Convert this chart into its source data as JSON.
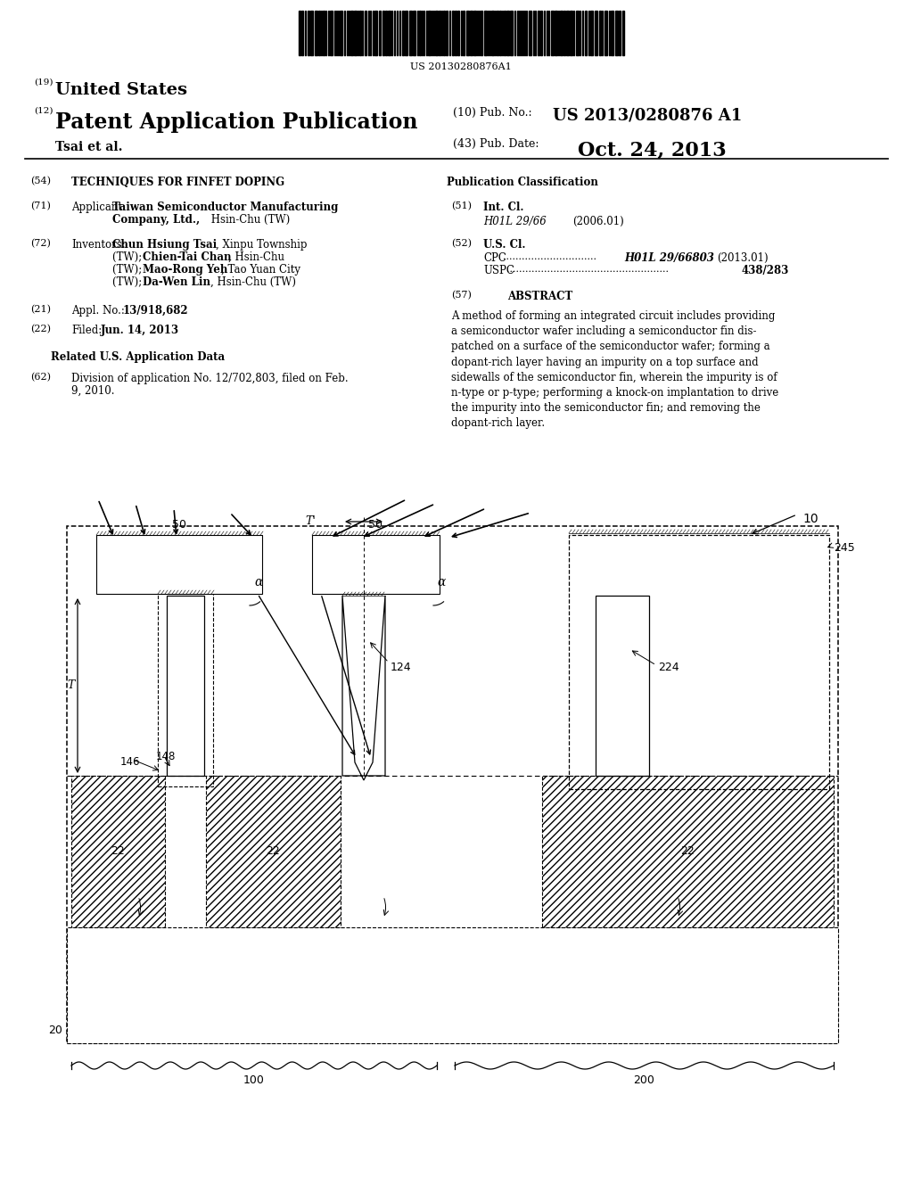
{
  "bg_color": "#ffffff",
  "barcode_text": "US 20130280876A1",
  "line19_label": "(19)",
  "line19_text": "United States",
  "line12_label": "(12)",
  "line12_text": "Patent Application Publication",
  "author": "Tsai et al.",
  "pub_no_label": "(10) Pub. No.:",
  "pub_no": "US 2013/0280876 A1",
  "pub_date_label": "(43) Pub. Date:",
  "pub_date": "Oct. 24, 2013",
  "title": "TECHNIQUES FOR FINFET DOPING",
  "pub_class_label": "Publication Classification",
  "int_cl_label": "Int. Cl.",
  "int_cl": "H01L 29/66",
  "int_cl_date": "(2006.01)",
  "us_cl_label": "U.S. Cl.",
  "cpc_class": "H01L 29/66803",
  "cpc_date": "(2013.01)",
  "uspc_class": "438/283",
  "appl_no": "13/918,682",
  "filed_date": "Jun. 14, 2013",
  "related_header": "Related U.S. Application Data",
  "div_text1": "Division of application No. 12/702,803, filed on Feb.",
  "div_text2": "9, 2010.",
  "abstract_label": "ABSTRACT",
  "abstract_text": "A method of forming an integrated circuit includes providing\na semiconductor wafer including a semiconductor fin dis-\npatched on a surface of the semiconductor wafer; forming a\ndopant-rich layer having an impurity on a top surface and\nsidewalls of the semiconductor fin, wherein the impurity is of\nn-type or p-type; performing a knock-on implantation to drive\nthe impurity into the semiconductor fin; and removing the\ndopant-rich layer."
}
